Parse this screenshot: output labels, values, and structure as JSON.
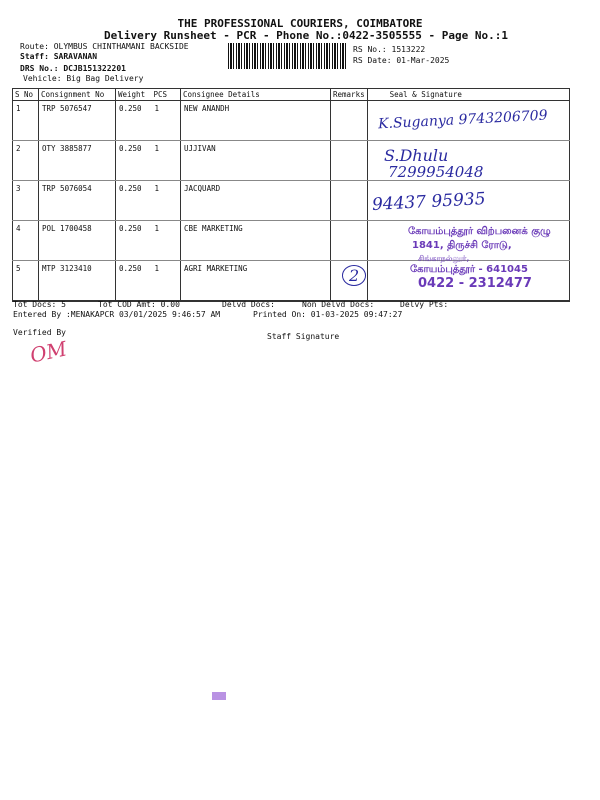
{
  "header": {
    "company": "THE PROFESSIONAL COURIERS, COIMBATORE",
    "subtitle": "Delivery Runsheet - PCR - Phone No.:0422-3505555 - Page No.:1",
    "route": "Route: OLYMBUS CHINTHAMANI BACKSIDE",
    "staff": "Staff: SARAVANAN",
    "drs": "DRS No.: DCJB151322201",
    "vehicle": "Vehicle: Big Bag Delivery",
    "rs_no": "RS No.: 1513222",
    "rs_date": "RS Date: 01-Mar-2025"
  },
  "table": {
    "columns": [
      "S No",
      "Consignment No",
      "Weight",
      "PCS",
      "Consignee Details",
      "Remarks",
      "Seal & Signature"
    ],
    "rows": [
      {
        "sno": "1",
        "consignment": "TRP 5076547",
        "weight": "0.250",
        "pcs": "1",
        "consignee": "NEW ANANDH"
      },
      {
        "sno": "2",
        "consignment": "OTY 3885877",
        "weight": "0.250",
        "pcs": "1",
        "consignee": "UJJIVAN"
      },
      {
        "sno": "3",
        "consignment": "TRP 5076054",
        "weight": "0.250",
        "pcs": "1",
        "consignee": "JACQUARD"
      },
      {
        "sno": "4",
        "consignment": "POL 1700458",
        "weight": "0.250",
        "pcs": "1",
        "consignee": "CBE MARKETING"
      },
      {
        "sno": "5",
        "consignment": "MTP 3123410",
        "weight": "0.250",
        "pcs": "1",
        "consignee": "AGRI MARKETING"
      }
    ]
  },
  "handwriting": {
    "row1": "K.Suganya 9743206709",
    "row2_name": "S.Dhulu",
    "row2_phone": "7299954048",
    "row3": "94437 95935",
    "row5_mark": "2",
    "verified_sig": "OM"
  },
  "stamp": {
    "line1": "கோயம்புத்தூர் விற்பனைக் குழு",
    "line2": "1841, திருச்சி ரோடு,",
    "line3": "சிங்காநல்லூர்,",
    "line4": "கோயம்புத்தூர் - 641045",
    "line5": "0422 - 2312477"
  },
  "footer": {
    "tot_docs": "Tot Docs:   5",
    "tot_cod": "Tot COD Amt:    0.00",
    "delvd": "Delvd Docs:",
    "non_delvd": "Non Delvd Docs:",
    "delvy_pts": "Delvy Pts:",
    "entered_by": "Entered By :MENAKAPCR 03/01/2025 9:46:57 AM",
    "printed_on": "Printed On: 01-03-2025 09:47:27",
    "verified_by": "Verified By",
    "staff_signature": "Staff Signature"
  }
}
